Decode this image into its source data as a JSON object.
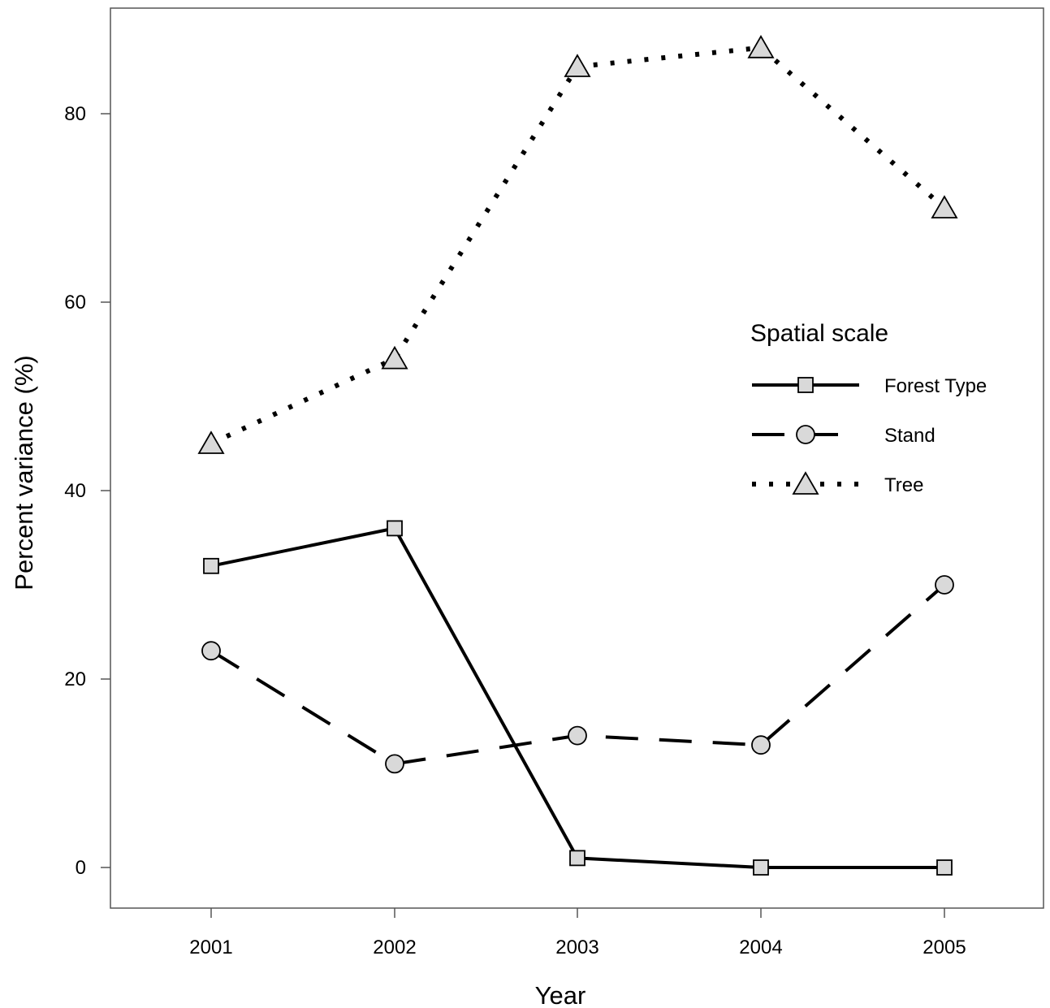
{
  "chart_data": {
    "type": "line",
    "title": "",
    "xlabel": "Year",
    "ylabel": "Percent variance (%)",
    "categories": [
      "2001",
      "2002",
      "2003",
      "2004",
      "2005"
    ],
    "yticks": [
      0,
      20,
      40,
      60,
      80
    ],
    "ylim": [
      -4.3,
      91.5
    ],
    "grid": false,
    "legend": {
      "title": "Spatial scale",
      "position": "right"
    },
    "series": [
      {
        "name": "Forest Type",
        "values": [
          32,
          36,
          1,
          0,
          0
        ],
        "line_style": "solid",
        "marker": "square"
      },
      {
        "name": "Stand",
        "values": [
          23,
          11,
          14,
          13,
          30
        ],
        "line_style": "dashed",
        "marker": "circle"
      },
      {
        "name": "Tree",
        "values": [
          45,
          54,
          85,
          87,
          70
        ],
        "line_style": "dotted",
        "marker": "triangle"
      }
    ],
    "colors": {
      "line": "#000000",
      "marker_fill": "#d9d9d9",
      "frame": "#555555"
    }
  }
}
